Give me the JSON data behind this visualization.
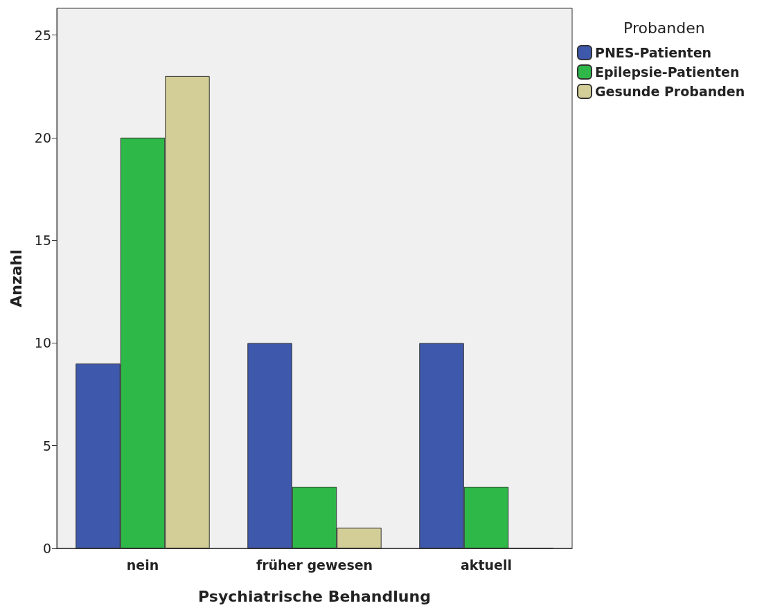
{
  "chart_data": {
    "type": "bar",
    "xlabel": "Psychiatrische Behandlung",
    "ylabel": "Anzahl",
    "legend_title": "Probanden",
    "categories": [
      "nein",
      "früher gewesen",
      "aktuell"
    ],
    "series": [
      {
        "name": "PNES-Patienten",
        "color": "#3e58ac",
        "values": [
          9,
          10,
          10
        ]
      },
      {
        "name": "Epilepsie-Patienten",
        "color": "#2eb848",
        "values": [
          20,
          3,
          3
        ]
      },
      {
        "name": "Gesunde Probanden",
        "color": "#d3ce97",
        "values": [
          23,
          1,
          0
        ]
      }
    ],
    "ylim": [
      0,
      26.3
    ],
    "yticks": [
      0,
      5,
      10,
      15,
      20,
      25
    ],
    "grid": false,
    "legend": "top right"
  }
}
